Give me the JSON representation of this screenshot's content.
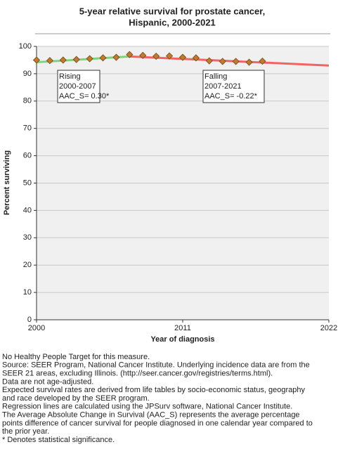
{
  "chart_data": {
    "type": "line",
    "title": [
      "5-year relative survival for prostate cancer,",
      "Hispanic,  2000-2021"
    ],
    "xlabel": "Year of diagnosis",
    "ylabel": "Percent surviving",
    "xlim": [
      2000,
      2022
    ],
    "xticks": [
      2000,
      2011,
      2022
    ],
    "ylim": [
      0,
      100
    ],
    "yticks": [
      0,
      10,
      20,
      30,
      40,
      50,
      60,
      70,
      80,
      90,
      100
    ],
    "grid": true,
    "series": [
      {
        "color": "#7fd27a",
        "x": [
          2000,
          2007
        ],
        "values": [
          94.2,
          96.3
        ]
      },
      {
        "color": "#f26464",
        "x": [
          2007,
          2022
        ],
        "values": [
          96.3,
          93.0
        ]
      },
      {
        "color": "#c27a30",
        "marker": "diamond",
        "x": [
          2000,
          2001,
          2002,
          2003,
          2004,
          2005,
          2006,
          2007,
          2008,
          2009,
          2010,
          2011,
          2012,
          2013,
          2014,
          2015,
          2016,
          2017
        ],
        "values": [
          95.0,
          94.8,
          95.0,
          95.2,
          95.5,
          95.8,
          96.0,
          97.0,
          96.7,
          96.4,
          96.5,
          96.0,
          95.8,
          94.7,
          94.5,
          94.5,
          94.2,
          94.6
        ]
      }
    ],
    "annotations": [
      [
        "Rising",
        "2000-2007",
        "AAC_S=  0.30*"
      ],
      [
        "Falling",
        "2007-2021",
        "AAC_S= -0.22*"
      ]
    ]
  },
  "notes": [
    "No Healthy People Target for this measure.",
    "Source: SEER Program, National Cancer Institute. Underlying incidence data are from the",
    "SEER 21 areas, excluding Illinois. (http://seer.cancer.gov/registries/terms.html).",
    "Data are not age-adjusted.",
    "Expected survival rates are derived from life tables by socio-economic status, geography",
    "and race developed by the SEER program.",
    "Regression lines are calculated using the JPSurv software, National Cancer Institute.",
    "The Average Absolute Change in Survival (AAC_S) represents the average percentage",
    "points difference of cancer survival for people diagnosed in one calendar year compared to",
    "the prior year.",
    "* Denotes statistical significance."
  ]
}
